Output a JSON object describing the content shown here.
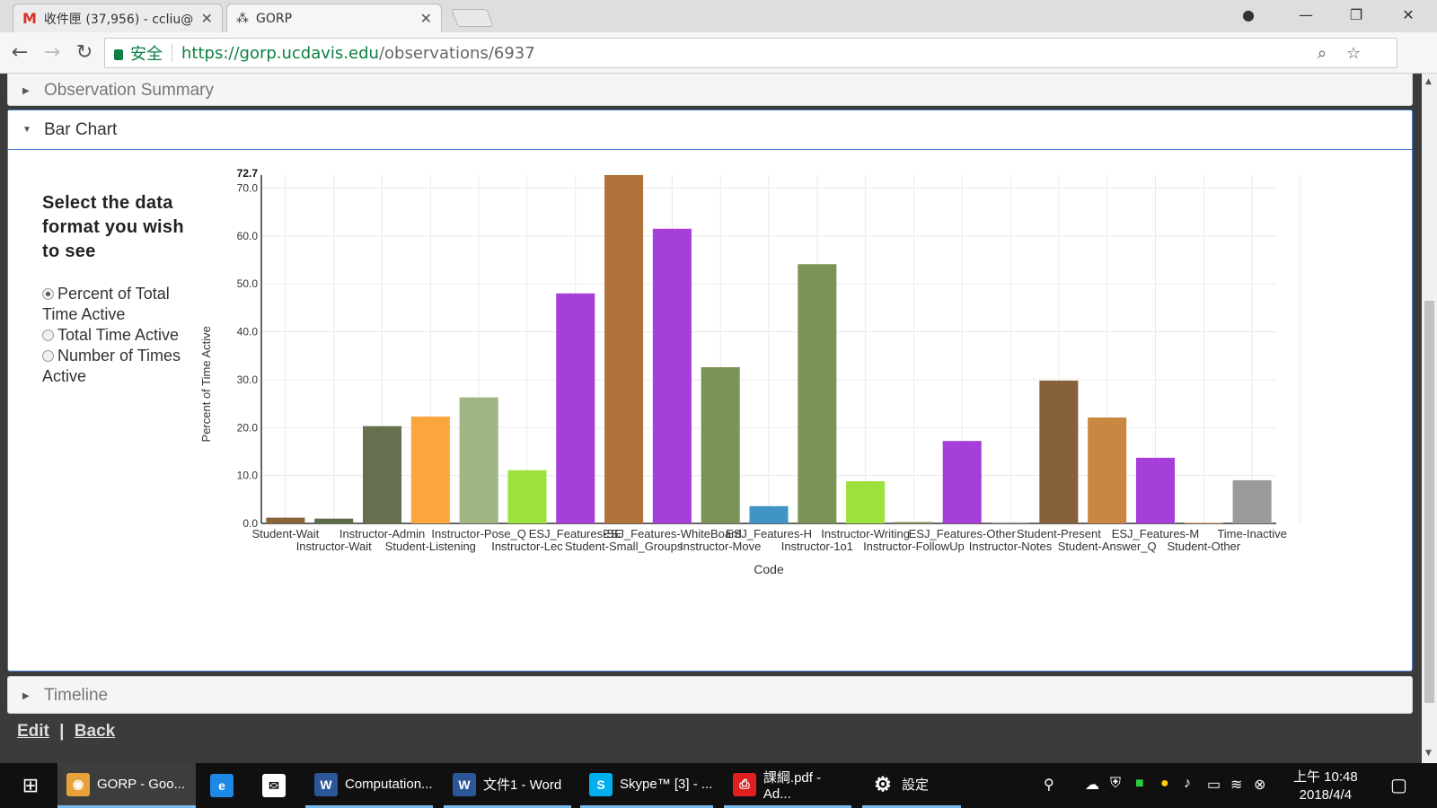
{
  "browser": {
    "tabs": [
      {
        "title": "收件匣 (37,956) - ccliu@",
        "icon": "gmail-icon"
      },
      {
        "title": "GORP",
        "icon": "gorp-icon"
      }
    ],
    "secure_label": "安全",
    "url_host": "https://gorp.ucdavis.edu",
    "url_path": "/observations/6937"
  },
  "page": {
    "panels": {
      "summary": "Observation Summary",
      "bar_chart": "Bar Chart",
      "timeline": "Timeline"
    },
    "controls": {
      "heading": "Select the data format you wish to see",
      "options": [
        {
          "label": "Percent of Total Time Active",
          "selected": true
        },
        {
          "label": "Total Time Active",
          "selected": false
        },
        {
          "label": "Number of Times Active",
          "selected": false
        }
      ]
    },
    "links": {
      "edit": "Edit",
      "separator": "|",
      "back": "Back"
    }
  },
  "chart_data": {
    "type": "bar",
    "xlabel": "Code",
    "ylabel": "Percent of Time Active",
    "ylim": [
      0,
      72.7
    ],
    "ymax_label": "72.7",
    "yticks": [
      "0.0",
      "10.0",
      "20.0",
      "30.0",
      "40.0",
      "50.0",
      "60.0",
      "70.0"
    ],
    "grid": true,
    "categories": [
      "Student-Wait",
      "Instructor-Wait",
      "Instructor-Admin",
      "Student-Listening",
      "Instructor-Pose_Q",
      "Instructor-Lec",
      "ESJ_Features-SE",
      "Student-Small_Groups",
      "ESJ_Features-WhiteBoard",
      "Instructor-Move",
      "ESJ_Features-H",
      "Instructor-1o1",
      "Instructor-Writing",
      "Instructor-FollowUp",
      "ESJ_Features-Other",
      "Instructor-Notes",
      "Student-Present",
      "Student-Answer_Q",
      "ESJ_Features-M",
      "Student-Other",
      "Time-Inactive"
    ],
    "values": [
      1.2,
      1.0,
      20.3,
      22.3,
      26.3,
      11.1,
      48.0,
      72.7,
      61.5,
      32.6,
      3.6,
      54.1,
      8.8,
      0.3,
      17.2,
      0.2,
      29.8,
      22.1,
      13.7,
      0.1,
      9.0
    ],
    "colors": [
      "#8b6239",
      "#5e6b47",
      "#66704e",
      "#fba53d",
      "#9fb583",
      "#9de23c",
      "#a63ed9",
      "#b0723a",
      "#a63ed9",
      "#7a9357",
      "#3f95c4",
      "#7a9357",
      "#9de23c",
      "#8a9a5b",
      "#a63ed9",
      "#9a9a9a",
      "#856239",
      "#c98741",
      "#a63ed9",
      "#f3b780",
      "#9a9a9a"
    ]
  },
  "taskbar": {
    "items": [
      {
        "label": "GORP - Goo...",
        "icon": "chrome-icon",
        "color": "#e8a23a"
      },
      {
        "label": "",
        "icon": "ie-icon",
        "color": "#1e88e5"
      },
      {
        "label": "",
        "icon": "mail-icon",
        "color": "#ffffff"
      },
      {
        "label": "Computation...",
        "icon": "word-icon",
        "color": "#2b579a"
      },
      {
        "label": "文件1 - Word",
        "icon": "word-icon",
        "color": "#2b579a"
      },
      {
        "label": "Skype™ [3] - ...",
        "icon": "skype-icon",
        "color": "#00aff0"
      },
      {
        "label": "課綱.pdf - Ad...",
        "icon": "pdf-icon",
        "color": "#e02020"
      },
      {
        "label": "設定",
        "icon": "gear-icon",
        "color": "#101010"
      }
    ],
    "time": "上午 10:48",
    "date": "2018/4/4"
  }
}
